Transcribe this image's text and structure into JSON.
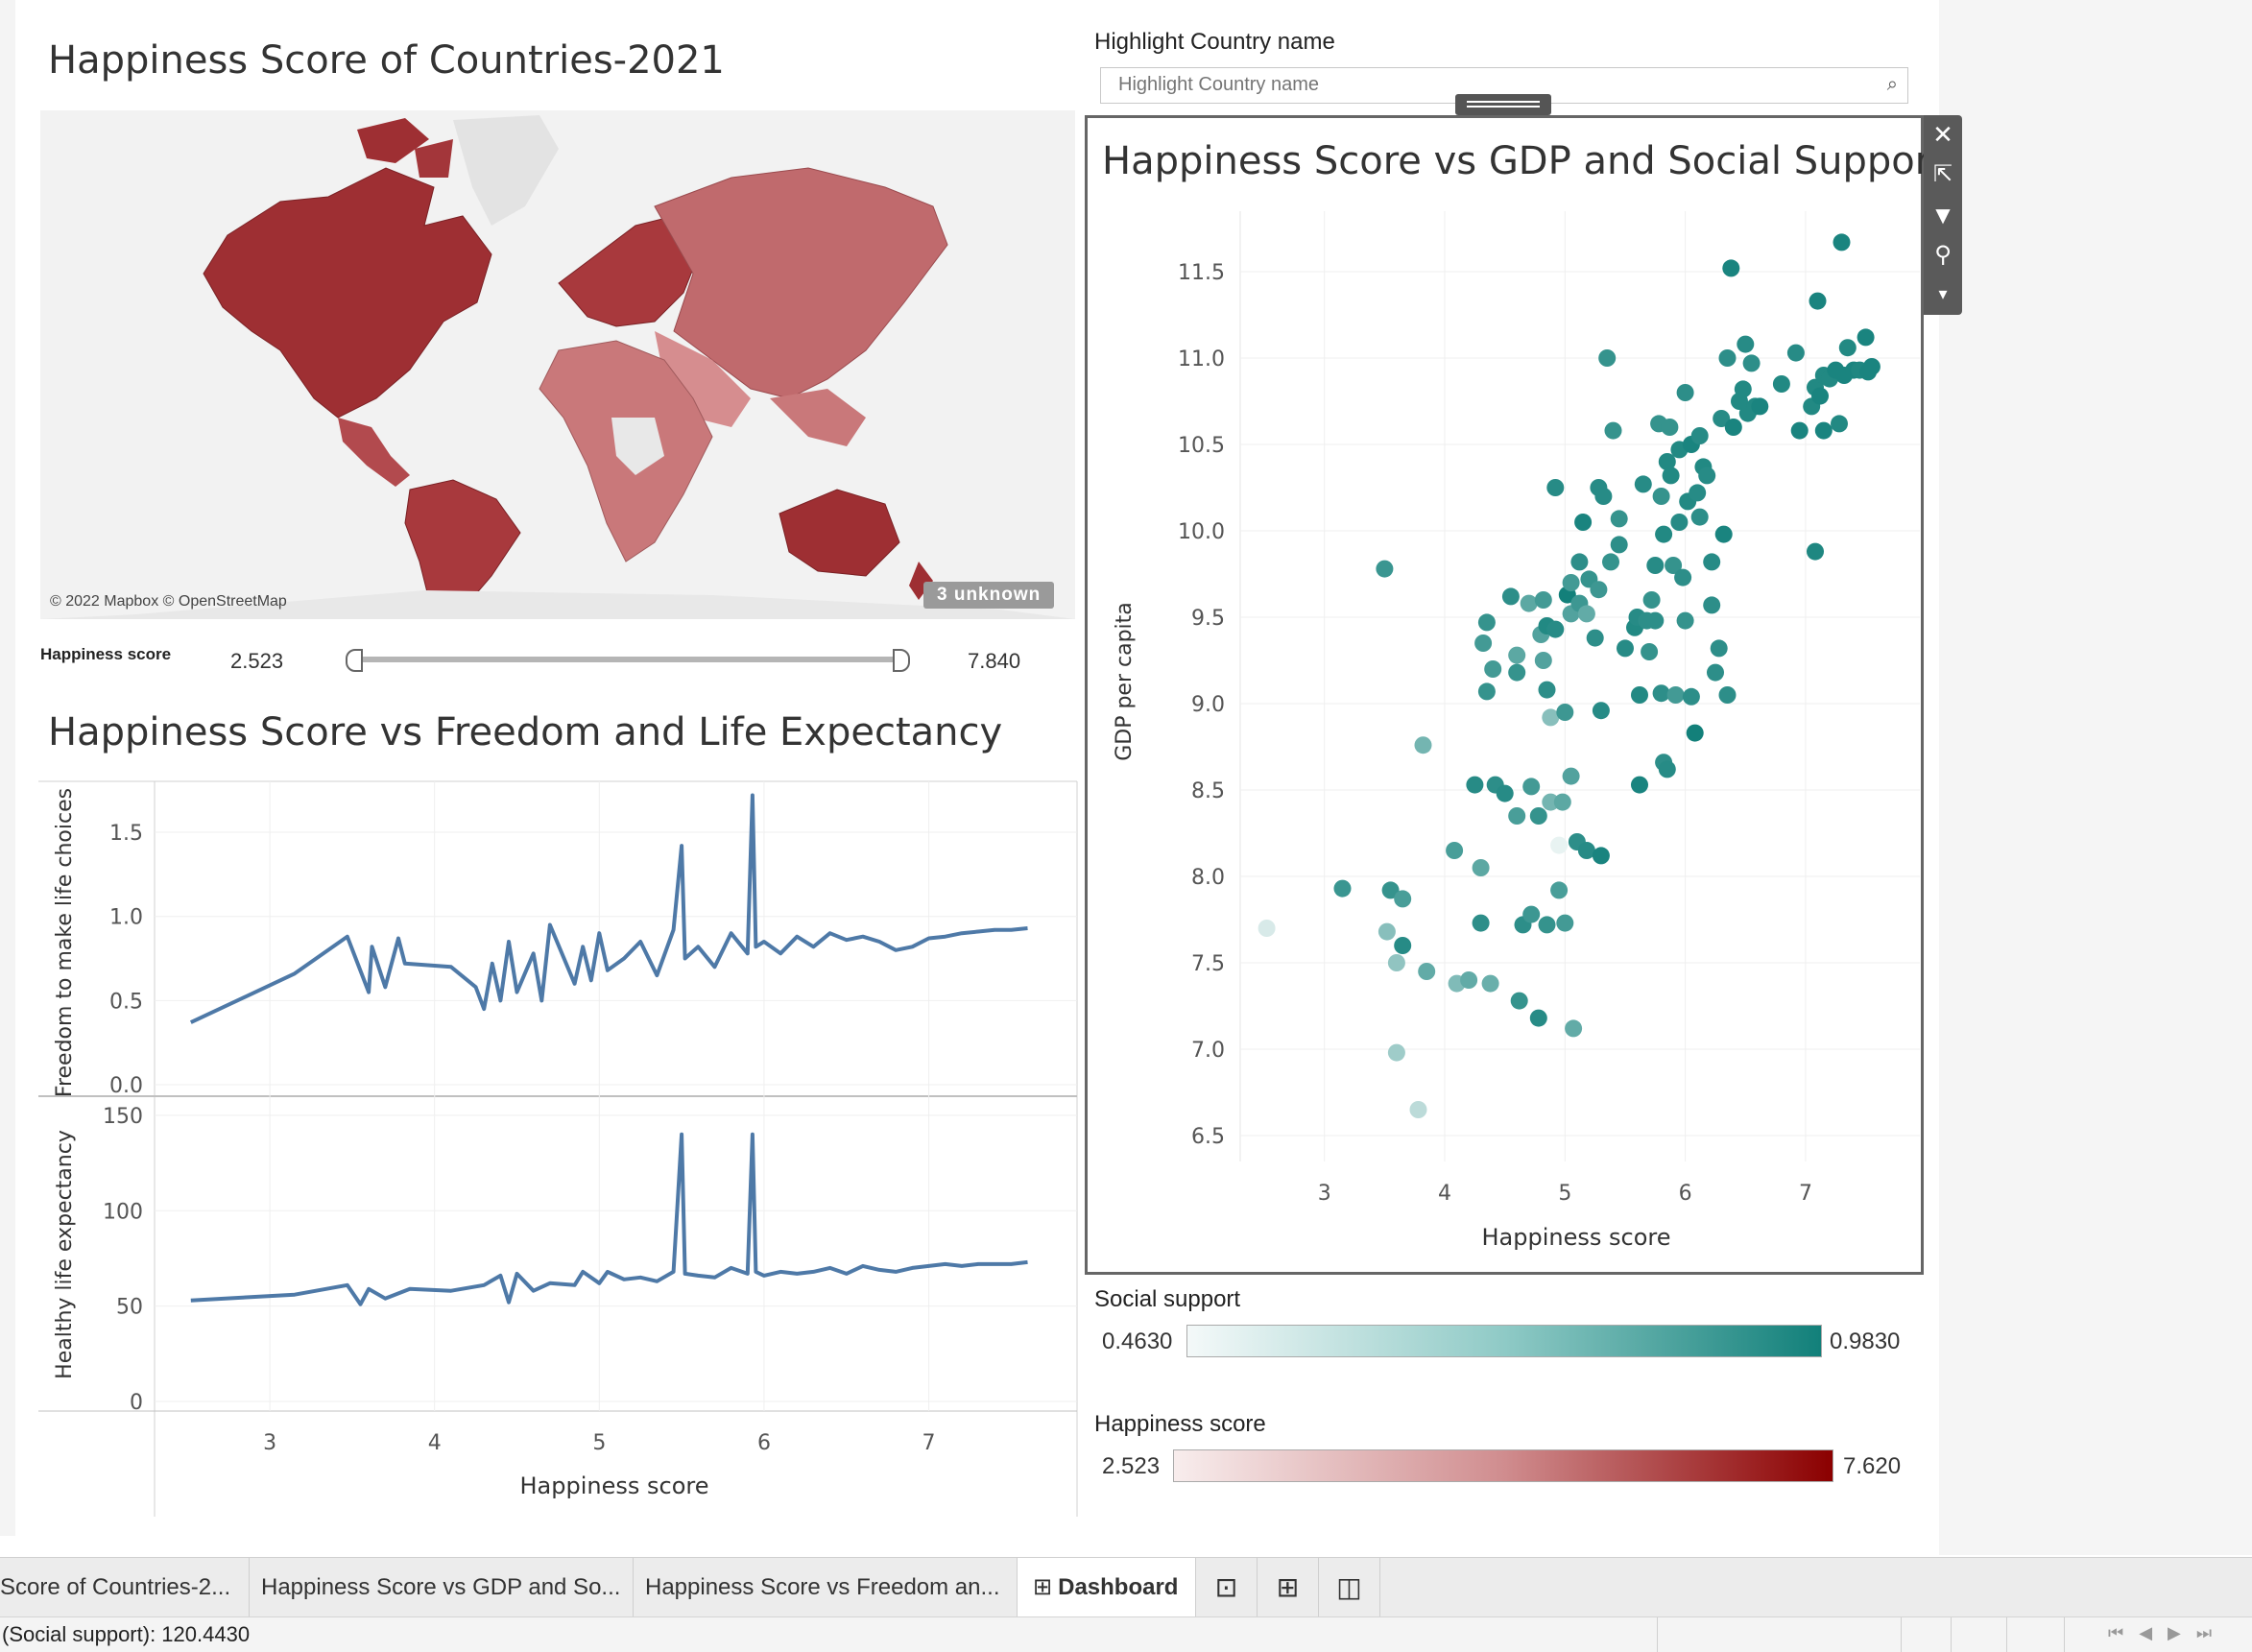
{
  "map": {
    "title": "Happiness Score of Countries-2021",
    "credit": "© 2022 Mapbox © OpenStreetMap",
    "unknown_badge": "3 unknown"
  },
  "slider": {
    "label": "Happiness score",
    "min_label": "2.523",
    "max_label": "7.840",
    "range": [
      2.523,
      7.84
    ]
  },
  "highlight": {
    "label": "Highlight Country name",
    "placeholder": "Highlight Country name"
  },
  "freedom_chart": {
    "title": "Happiness Score vs Freedom and  Life Expectancy",
    "xlabel": "Happiness score",
    "x_ticks": [
      "3",
      "4",
      "5",
      "6",
      "7"
    ]
  },
  "scatter_chart": {
    "title": "Happiness Score vs GDP and Social Support"
  },
  "legends": {
    "social": {
      "title": "Social support",
      "min": "0.4630",
      "max": "0.9830"
    },
    "happiness": {
      "title": "Happiness score",
      "min": "2.523",
      "max": "7.620"
    }
  },
  "colors": {
    "map_dark": "#9e2f33",
    "map_light": "#e8b5b5",
    "line": "#4e79a7",
    "teal_dark": "#12807a",
    "teal_light": "#e6f2f1",
    "red_dark": "#8b0000"
  },
  "icons": {
    "close": "close-icon",
    "popout": "popout-icon",
    "filter": "filter-icon",
    "pin": "pin-icon",
    "more": "caret-down-icon"
  },
  "tabs": [
    {
      "label": "Score of Countries-2...",
      "active": false
    },
    {
      "label": "Happiness Score vs GDP and So...",
      "active": false
    },
    {
      "label": "Happiness Score vs Freedom an...",
      "active": false
    },
    {
      "label": "Dashboard",
      "active": true
    }
  ],
  "status": {
    "text": "(Social support): 120.4430"
  },
  "chart_data": [
    {
      "type": "line",
      "xlabel": "Happiness score",
      "ylabel": "Freedom to make life choices",
      "xlim": [
        2.3,
        7.9
      ],
      "ylim": [
        0,
        1.7
      ],
      "y_ticks": [
        "0.0",
        "0.5",
        "1.0",
        "1.5"
      ],
      "x": [
        2.52,
        3.15,
        3.47,
        3.6,
        3.62,
        3.7,
        3.78,
        3.82,
        4.1,
        4.25,
        4.3,
        4.35,
        4.4,
        4.45,
        4.5,
        4.6,
        4.65,
        4.7,
        4.85,
        4.9,
        4.95,
        5.0,
        5.05,
        5.15,
        5.25,
        5.35,
        5.45,
        5.5,
        5.52,
        5.6,
        5.7,
        5.8,
        5.9,
        5.93,
        5.95,
        6.0,
        6.1,
        6.2,
        6.3,
        6.4,
        6.5,
        6.6,
        6.7,
        6.8,
        6.9,
        7.0,
        7.1,
        7.2,
        7.3,
        7.4,
        7.5,
        7.6
      ],
      "values": [
        0.37,
        0.66,
        0.88,
        0.55,
        0.82,
        0.58,
        0.87,
        0.72,
        0.7,
        0.58,
        0.45,
        0.72,
        0.5,
        0.85,
        0.55,
        0.78,
        0.5,
        0.95,
        0.6,
        0.82,
        0.62,
        0.9,
        0.68,
        0.75,
        0.85,
        0.65,
        0.92,
        1.42,
        0.75,
        0.82,
        0.7,
        0.9,
        0.78,
        1.72,
        0.82,
        0.85,
        0.78,
        0.88,
        0.82,
        0.9,
        0.86,
        0.88,
        0.85,
        0.8,
        0.82,
        0.87,
        0.88,
        0.9,
        0.91,
        0.92,
        0.92,
        0.93
      ]
    },
    {
      "type": "line",
      "xlabel": "Happiness score",
      "ylabel": "Healthy life expectancy",
      "xlim": [
        2.3,
        7.9
      ],
      "ylim": [
        0,
        155
      ],
      "y_ticks": [
        "0",
        "50",
        "100",
        "150"
      ],
      "x": [
        2.52,
        3.15,
        3.47,
        3.55,
        3.6,
        3.7,
        3.85,
        4.1,
        4.3,
        4.4,
        4.45,
        4.5,
        4.6,
        4.7,
        4.85,
        4.9,
        5.0,
        5.05,
        5.15,
        5.25,
        5.35,
        5.45,
        5.5,
        5.52,
        5.6,
        5.7,
        5.8,
        5.9,
        5.93,
        5.95,
        6.0,
        6.1,
        6.2,
        6.3,
        6.4,
        6.5,
        6.6,
        6.7,
        6.8,
        6.9,
        7.0,
        7.1,
        7.2,
        7.3,
        7.4,
        7.5,
        7.6
      ],
      "values": [
        53,
        56,
        61,
        51,
        59,
        54,
        59,
        58,
        61,
        66,
        52,
        67,
        58,
        62,
        61,
        68,
        62,
        68,
        64,
        65,
        63,
        68,
        140,
        67,
        66,
        65,
        70,
        67,
        140,
        68,
        66,
        68,
        67,
        68,
        70,
        67,
        71,
        69,
        68,
        70,
        71,
        72,
        71,
        72,
        72,
        72,
        73
      ]
    },
    {
      "type": "scatter",
      "xlabel": "Happiness score",
      "ylabel": "GDP per capita",
      "xlim": [
        2.3,
        7.95
      ],
      "ylim": [
        6.35,
        11.85
      ],
      "x_ticks": [
        "3",
        "4",
        "5",
        "6",
        "7"
      ],
      "y_ticks": [
        "6.5",
        "7.0",
        "7.5",
        "8.0",
        "8.5",
        "9.0",
        "9.5",
        "10.0",
        "10.5",
        "11.0",
        "11.5"
      ],
      "color_by": "Social support",
      "points": [
        {
          "x": 2.52,
          "y": 7.7,
          "s": 0.47
        },
        {
          "x": 3.15,
          "y": 7.93,
          "s": 0.83
        },
        {
          "x": 3.5,
          "y": 9.78,
          "s": 0.83
        },
        {
          "x": 3.52,
          "y": 7.68,
          "s": 0.6
        },
        {
          "x": 3.55,
          "y": 7.92,
          "s": 0.85
        },
        {
          "x": 3.6,
          "y": 6.98,
          "s": 0.55
        },
        {
          "x": 3.6,
          "y": 7.5,
          "s": 0.58
        },
        {
          "x": 3.65,
          "y": 7.6,
          "s": 0.9
        },
        {
          "x": 3.65,
          "y": 7.87,
          "s": 0.78
        },
        {
          "x": 3.78,
          "y": 6.65,
          "s": 0.5
        },
        {
          "x": 3.82,
          "y": 8.76,
          "s": 0.65
        },
        {
          "x": 3.85,
          "y": 7.45,
          "s": 0.7
        },
        {
          "x": 4.08,
          "y": 8.15,
          "s": 0.78
        },
        {
          "x": 4.1,
          "y": 7.38,
          "s": 0.62
        },
        {
          "x": 4.2,
          "y": 7.4,
          "s": 0.7
        },
        {
          "x": 4.25,
          "y": 8.53,
          "s": 0.9
        },
        {
          "x": 4.3,
          "y": 7.73,
          "s": 0.88
        },
        {
          "x": 4.3,
          "y": 8.05,
          "s": 0.72
        },
        {
          "x": 4.32,
          "y": 9.35,
          "s": 0.8
        },
        {
          "x": 4.35,
          "y": 9.47,
          "s": 0.85
        },
        {
          "x": 4.35,
          "y": 9.07,
          "s": 0.85
        },
        {
          "x": 4.38,
          "y": 7.38,
          "s": 0.68
        },
        {
          "x": 4.4,
          "y": 9.2,
          "s": 0.8
        },
        {
          "x": 4.42,
          "y": 8.53,
          "s": 0.88
        },
        {
          "x": 4.5,
          "y": 8.48,
          "s": 0.9
        },
        {
          "x": 4.55,
          "y": 9.62,
          "s": 0.88
        },
        {
          "x": 4.6,
          "y": 9.28,
          "s": 0.72
        },
        {
          "x": 4.6,
          "y": 9.18,
          "s": 0.85
        },
        {
          "x": 4.6,
          "y": 8.35,
          "s": 0.78
        },
        {
          "x": 4.62,
          "y": 7.28,
          "s": 0.85
        },
        {
          "x": 4.65,
          "y": 7.72,
          "s": 0.88
        },
        {
          "x": 4.7,
          "y": 9.58,
          "s": 0.72
        },
        {
          "x": 4.72,
          "y": 8.52,
          "s": 0.8
        },
        {
          "x": 4.72,
          "y": 7.78,
          "s": 0.82
        },
        {
          "x": 4.78,
          "y": 7.18,
          "s": 0.9
        },
        {
          "x": 4.78,
          "y": 8.35,
          "s": 0.85
        },
        {
          "x": 4.8,
          "y": 9.4,
          "s": 0.75
        },
        {
          "x": 4.82,
          "y": 9.6,
          "s": 0.8
        },
        {
          "x": 4.82,
          "y": 9.25,
          "s": 0.75
        },
        {
          "x": 4.85,
          "y": 9.45,
          "s": 0.92
        },
        {
          "x": 4.85,
          "y": 9.08,
          "s": 0.88
        },
        {
          "x": 4.85,
          "y": 7.72,
          "s": 0.85
        },
        {
          "x": 4.88,
          "y": 8.43,
          "s": 0.65
        },
        {
          "x": 4.88,
          "y": 8.92,
          "s": 0.6
        },
        {
          "x": 4.92,
          "y": 9.43,
          "s": 0.9
        },
        {
          "x": 4.92,
          "y": 10.25,
          "s": 0.9
        },
        {
          "x": 4.95,
          "y": 7.92,
          "s": 0.78
        },
        {
          "x": 4.95,
          "y": 8.18,
          "s": 0.45
        },
        {
          "x": 4.98,
          "y": 8.43,
          "s": 0.72
        },
        {
          "x": 5.0,
          "y": 7.73,
          "s": 0.8
        },
        {
          "x": 5.0,
          "y": 8.95,
          "s": 0.82
        },
        {
          "x": 5.02,
          "y": 9.63,
          "s": 0.98
        },
        {
          "x": 5.05,
          "y": 9.52,
          "s": 0.75
        },
        {
          "x": 5.05,
          "y": 9.7,
          "s": 0.8
        },
        {
          "x": 5.05,
          "y": 8.58,
          "s": 0.75
        },
        {
          "x": 5.07,
          "y": 7.12,
          "s": 0.7
        },
        {
          "x": 5.1,
          "y": 8.2,
          "s": 0.88
        },
        {
          "x": 5.12,
          "y": 9.58,
          "s": 0.82
        },
        {
          "x": 5.12,
          "y": 9.82,
          "s": 0.88
        },
        {
          "x": 5.15,
          "y": 10.05,
          "s": 0.95
        },
        {
          "x": 5.18,
          "y": 9.52,
          "s": 0.7
        },
        {
          "x": 5.18,
          "y": 8.15,
          "s": 0.9
        },
        {
          "x": 5.2,
          "y": 9.72,
          "s": 0.85
        },
        {
          "x": 5.25,
          "y": 9.38,
          "s": 0.88
        },
        {
          "x": 5.28,
          "y": 10.25,
          "s": 0.9
        },
        {
          "x": 5.28,
          "y": 9.66,
          "s": 0.82
        },
        {
          "x": 5.3,
          "y": 8.96,
          "s": 0.9
        },
        {
          "x": 5.3,
          "y": 8.12,
          "s": 0.95
        },
        {
          "x": 5.32,
          "y": 10.2,
          "s": 0.9
        },
        {
          "x": 5.35,
          "y": 11.0,
          "s": 0.85
        },
        {
          "x": 5.38,
          "y": 9.82,
          "s": 0.85
        },
        {
          "x": 5.4,
          "y": 10.58,
          "s": 0.85
        },
        {
          "x": 5.45,
          "y": 9.92,
          "s": 0.88
        },
        {
          "x": 5.45,
          "y": 10.07,
          "s": 0.85
        },
        {
          "x": 5.5,
          "y": 9.32,
          "s": 0.9
        },
        {
          "x": 5.58,
          "y": 9.44,
          "s": 0.92
        },
        {
          "x": 5.6,
          "y": 9.5,
          "s": 0.9
        },
        {
          "x": 5.62,
          "y": 9.05,
          "s": 0.92
        },
        {
          "x": 5.62,
          "y": 8.53,
          "s": 0.95
        },
        {
          "x": 5.65,
          "y": 10.27,
          "s": 0.9
        },
        {
          "x": 5.68,
          "y": 9.48,
          "s": 0.88
        },
        {
          "x": 5.7,
          "y": 9.3,
          "s": 0.85
        },
        {
          "x": 5.72,
          "y": 9.6,
          "s": 0.85
        },
        {
          "x": 5.75,
          "y": 9.48,
          "s": 0.88
        },
        {
          "x": 5.75,
          "y": 9.8,
          "s": 0.9
        },
        {
          "x": 5.78,
          "y": 10.62,
          "s": 0.85
        },
        {
          "x": 5.8,
          "y": 10.2,
          "s": 0.85
        },
        {
          "x": 5.8,
          "y": 9.06,
          "s": 0.88
        },
        {
          "x": 5.82,
          "y": 8.66,
          "s": 0.88
        },
        {
          "x": 5.82,
          "y": 9.98,
          "s": 0.92
        },
        {
          "x": 5.85,
          "y": 10.4,
          "s": 0.92
        },
        {
          "x": 5.85,
          "y": 8.62,
          "s": 0.9
        },
        {
          "x": 5.87,
          "y": 10.6,
          "s": 0.85
        },
        {
          "x": 5.88,
          "y": 10.32,
          "s": 0.92
        },
        {
          "x": 5.9,
          "y": 9.8,
          "s": 0.85
        },
        {
          "x": 5.92,
          "y": 9.05,
          "s": 0.8
        },
        {
          "x": 5.95,
          "y": 10.47,
          "s": 0.92
        },
        {
          "x": 5.95,
          "y": 10.05,
          "s": 0.9
        },
        {
          "x": 5.98,
          "y": 9.73,
          "s": 0.88
        },
        {
          "x": 6.0,
          "y": 9.48,
          "s": 0.85
        },
        {
          "x": 6.0,
          "y": 10.8,
          "s": 0.88
        },
        {
          "x": 6.02,
          "y": 10.17,
          "s": 0.92
        },
        {
          "x": 6.05,
          "y": 10.5,
          "s": 0.95
        },
        {
          "x": 6.05,
          "y": 9.04,
          "s": 0.88
        },
        {
          "x": 6.08,
          "y": 8.83,
          "s": 0.98
        },
        {
          "x": 6.1,
          "y": 10.22,
          "s": 0.9
        },
        {
          "x": 6.12,
          "y": 10.55,
          "s": 0.9
        },
        {
          "x": 6.12,
          "y": 10.08,
          "s": 0.88
        },
        {
          "x": 6.15,
          "y": 10.37,
          "s": 0.92
        },
        {
          "x": 6.18,
          "y": 10.32,
          "s": 0.9
        },
        {
          "x": 6.22,
          "y": 9.82,
          "s": 0.9
        },
        {
          "x": 6.22,
          "y": 9.57,
          "s": 0.88
        },
        {
          "x": 6.25,
          "y": 9.18,
          "s": 0.88
        },
        {
          "x": 6.28,
          "y": 9.32,
          "s": 0.88
        },
        {
          "x": 6.3,
          "y": 10.65,
          "s": 0.9
        },
        {
          "x": 6.32,
          "y": 9.98,
          "s": 0.95
        },
        {
          "x": 6.35,
          "y": 11.0,
          "s": 0.88
        },
        {
          "x": 6.35,
          "y": 9.05,
          "s": 0.88
        },
        {
          "x": 6.38,
          "y": 11.52,
          "s": 0.95
        },
        {
          "x": 6.4,
          "y": 10.6,
          "s": 0.95
        },
        {
          "x": 6.45,
          "y": 10.75,
          "s": 0.92
        },
        {
          "x": 6.48,
          "y": 10.82,
          "s": 0.92
        },
        {
          "x": 6.5,
          "y": 11.08,
          "s": 0.9
        },
        {
          "x": 6.52,
          "y": 10.68,
          "s": 0.92
        },
        {
          "x": 6.55,
          "y": 10.97,
          "s": 0.88
        },
        {
          "x": 6.58,
          "y": 10.72,
          "s": 0.92
        },
        {
          "x": 6.62,
          "y": 10.72,
          "s": 0.95
        },
        {
          "x": 6.8,
          "y": 10.85,
          "s": 0.92
        },
        {
          "x": 6.92,
          "y": 11.03,
          "s": 0.9
        },
        {
          "x": 6.95,
          "y": 10.58,
          "s": 0.95
        },
        {
          "x": 7.05,
          "y": 10.72,
          "s": 0.92
        },
        {
          "x": 7.08,
          "y": 10.83,
          "s": 0.92
        },
        {
          "x": 7.08,
          "y": 9.88,
          "s": 0.93
        },
        {
          "x": 7.1,
          "y": 11.33,
          "s": 0.95
        },
        {
          "x": 7.12,
          "y": 10.78,
          "s": 0.95
        },
        {
          "x": 7.15,
          "y": 10.58,
          "s": 0.95
        },
        {
          "x": 7.15,
          "y": 10.9,
          "s": 0.92
        },
        {
          "x": 7.2,
          "y": 10.88,
          "s": 0.92
        },
        {
          "x": 7.25,
          "y": 10.93,
          "s": 0.95
        },
        {
          "x": 7.28,
          "y": 10.62,
          "s": 0.92
        },
        {
          "x": 7.3,
          "y": 11.67,
          "s": 0.95
        },
        {
          "x": 7.32,
          "y": 10.9,
          "s": 0.95
        },
        {
          "x": 7.35,
          "y": 11.06,
          "s": 0.92
        },
        {
          "x": 7.4,
          "y": 10.93,
          "s": 0.95
        },
        {
          "x": 7.45,
          "y": 10.93,
          "s": 0.93
        },
        {
          "x": 7.5,
          "y": 11.12,
          "s": 0.95
        },
        {
          "x": 7.52,
          "y": 10.92,
          "s": 0.95
        },
        {
          "x": 7.55,
          "y": 10.95,
          "s": 0.95
        }
      ]
    }
  ]
}
